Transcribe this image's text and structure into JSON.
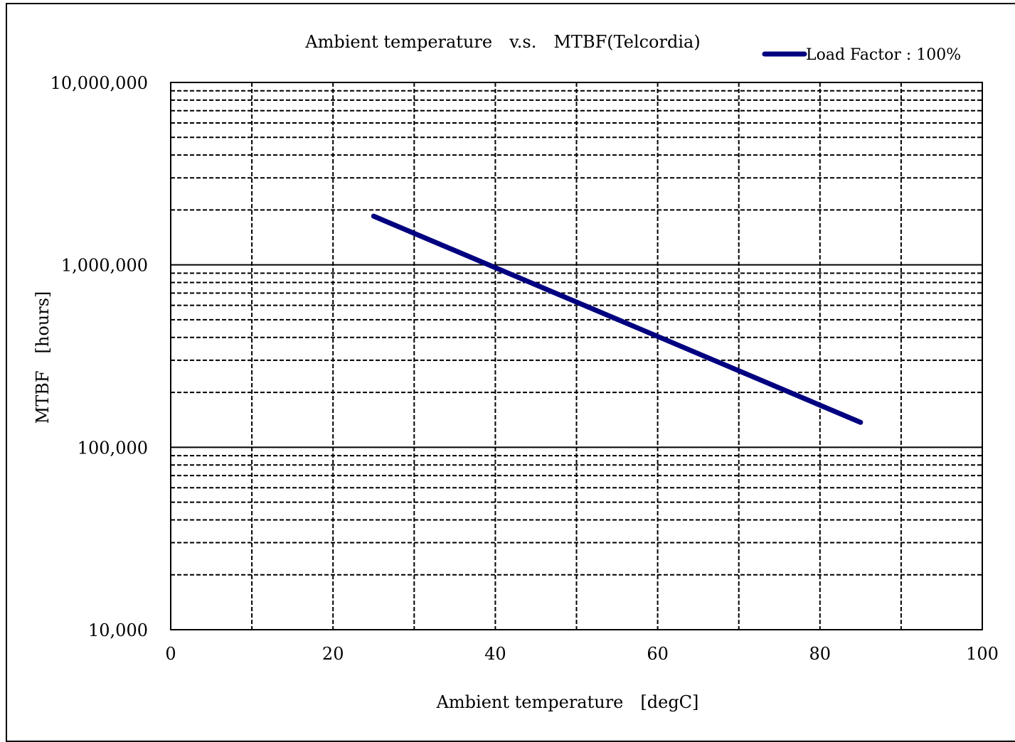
{
  "chart_data": {
    "type": "line",
    "title": "Ambient temperature　v.s.　MTBF(Telcordia)",
    "xlabel": "Ambient temperature　[degC]",
    "ylabel": "MTBF　[hours]",
    "xlim": [
      0,
      100
    ],
    "ylim": [
      10000,
      10000000
    ],
    "y_scale": "log",
    "grid": true,
    "legend_position": "top-right",
    "x_ticks": [
      0,
      20,
      40,
      60,
      80,
      100
    ],
    "x_tick_labels": [
      "0",
      "20",
      "40",
      "60",
      "80",
      "100"
    ],
    "y_ticks": [
      10000,
      100000,
      1000000,
      10000000
    ],
    "y_tick_labels": [
      "10,000",
      "100,000",
      "1,000,000",
      "10,000,000"
    ],
    "series": [
      {
        "name": "Load Factor : 100%",
        "color": "#000080",
        "x": [
          25,
          85
        ],
        "y": [
          1850000,
          137000
        ]
      }
    ]
  }
}
